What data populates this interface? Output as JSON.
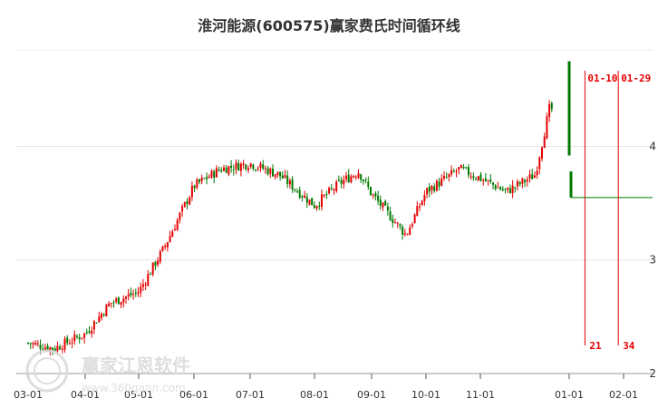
{
  "chart_data": {
    "type": "candlestick",
    "title": "淮河能源(600575)赢家费氏时间循环线",
    "x_tick_labels": [
      "03-01",
      "04-01",
      "05-01",
      "06-01",
      "07-01",
      "08-01",
      "09-01",
      "10-01",
      "11-01",
      "01-01",
      "02-01"
    ],
    "y_tick_labels": [
      "4",
      "3",
      "2"
    ],
    "ylim": [
      2,
      4.85
    ],
    "grid": true,
    "price_series": [
      {
        "date": "03-01",
        "close": 2.27
      },
      {
        "date": "03-15",
        "close": 2.22
      },
      {
        "date": "04-01",
        "close": 2.35
      },
      {
        "date": "04-15",
        "close": 2.62
      },
      {
        "date": "05-01",
        "close": 2.72
      },
      {
        "date": "05-15",
        "close": 3.1
      },
      {
        "date": "06-01",
        "close": 3.65
      },
      {
        "date": "06-15",
        "close": 3.8
      },
      {
        "date": "07-01",
        "close": 3.85
      },
      {
        "date": "07-15",
        "close": 3.75
      },
      {
        "date": "08-01",
        "close": 3.48
      },
      {
        "date": "08-15",
        "close": 3.68
      },
      {
        "date": "08-25",
        "close": 3.78
      },
      {
        "date": "09-01",
        "close": 3.58
      },
      {
        "date": "09-20",
        "close": 3.22
      },
      {
        "date": "10-01",
        "close": 3.6
      },
      {
        "date": "10-20",
        "close": 3.8
      },
      {
        "date": "11-01",
        "close": 3.72
      },
      {
        "date": "11-20",
        "close": 3.6
      },
      {
        "date": "12-10",
        "close": 3.75
      },
      {
        "date": "12-20",
        "close": 4.38
      },
      {
        "date": "01-01",
        "close": 3.55
      }
    ],
    "cycle_lines": [
      {
        "date_label": "01-10",
        "count_label": "21"
      },
      {
        "date_label": "01-29",
        "count_label": "34"
      }
    ],
    "projection_level": 3.55,
    "colors": {
      "up": "#e50000",
      "down": "#007a00",
      "cycle_line": "#e50000"
    }
  },
  "watermark": {
    "brand": "赢家江恩软件",
    "url": "www.360gann.com"
  }
}
